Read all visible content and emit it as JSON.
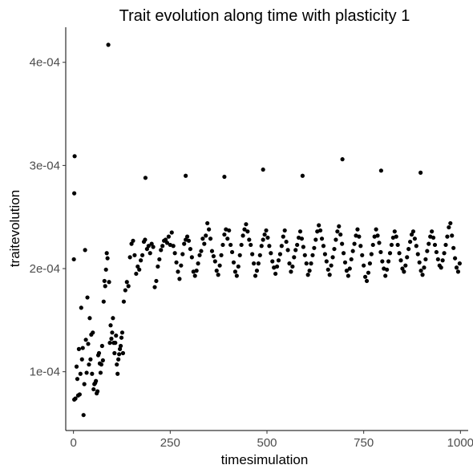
{
  "chart_data": {
    "type": "scatter",
    "title": "Trait evolution along time with plasticity 1",
    "xlabel": "timesimulation",
    "ylabel": "traitevolution",
    "xlim": [
      -20,
      1020
    ],
    "ylim": [
      4.3e-05,
      0.000434
    ],
    "x_ticks": [
      0,
      250,
      500,
      750,
      1000
    ],
    "x_tick_labels": [
      "0",
      "250",
      "500",
      "750",
      "1000"
    ],
    "y_ticks": [
      0.0001,
      0.0002,
      0.0003,
      0.0004
    ],
    "y_tick_labels": [
      "1e-04",
      "2e-04",
      "3e-04",
      "4e-04"
    ],
    "grid": false,
    "point_color": "#000000",
    "outliers": [
      {
        "x": 3,
        "y": 0.000309
      },
      {
        "x": 2,
        "y": 0.000273
      },
      {
        "x": 1,
        "y": 0.000209
      },
      {
        "x": 90,
        "y": 0.000417
      },
      {
        "x": 186,
        "y": 0.000288
      },
      {
        "x": 290,
        "y": 0.00029
      },
      {
        "x": 390,
        "y": 0.000289
      },
      {
        "x": 490,
        "y": 0.000296
      },
      {
        "x": 592,
        "y": 0.00029
      },
      {
        "x": 695,
        "y": 0.000306
      },
      {
        "x": 795,
        "y": 0.000295
      },
      {
        "x": 897,
        "y": 0.000293
      }
    ],
    "points": [
      [
        2,
        7.3e-05
      ],
      [
        5,
        7.4e-05
      ],
      [
        8,
        0.000105
      ],
      [
        10,
        9.3e-05
      ],
      [
        12,
        7.7e-05
      ],
      [
        14,
        0.000122
      ],
      [
        16,
        7.8e-05
      ],
      [
        18,
        9.8e-05
      ],
      [
        20,
        0.000162
      ],
      [
        22,
        0.000112
      ],
      [
        24,
        0.000123
      ],
      [
        26,
        5.8e-05
      ],
      [
        28,
        8.8e-05
      ],
      [
        30,
        0.000218
      ],
      [
        32,
        0.000131
      ],
      [
        34,
        9.9e-05
      ],
      [
        36,
        0.000172
      ],
      [
        38,
        0.000127
      ],
      [
        40,
        0.000107
      ],
      [
        42,
        0.000152
      ],
      [
        44,
        0.000112
      ],
      [
        46,
        0.000136
      ],
      [
        48,
        9.8e-05
      ],
      [
        50,
        0.000138
      ],
      [
        52,
        8.3e-05
      ],
      [
        54,
        8.8e-05
      ],
      [
        56,
        8.9e-05
      ],
      [
        58,
        9.1e-05
      ],
      [
        60,
        7.9e-05
      ],
      [
        62,
        8.1e-05
      ],
      [
        64,
        0.000116
      ],
      [
        66,
        0.000118
      ],
      [
        68,
        0.000108
      ],
      [
        70,
        9.9e-05
      ],
      [
        72,
        0.000107
      ],
      [
        74,
        0.000125
      ],
      [
        76,
        0.000111
      ],
      [
        78,
        0.000168
      ],
      [
        80,
        0.000188
      ],
      [
        82,
        0.000183
      ],
      [
        84,
        0.000199
      ],
      [
        86,
        0.000215
      ],
      [
        88,
        0.00021
      ],
      [
        92,
        0.000187
      ],
      [
        94,
        0.000128
      ],
      [
        96,
        0.000145
      ],
      [
        98,
        0.000132
      ],
      [
        100,
        0.000138
      ],
      [
        102,
        0.000152
      ],
      [
        104,
        0.000128
      ],
      [
        106,
        0.000118
      ],
      [
        108,
        0.000128
      ],
      [
        110,
        0.000135
      ],
      [
        112,
        0.000107
      ],
      [
        114,
        9.8e-05
      ],
      [
        116,
        0.000112
      ],
      [
        118,
        0.000117
      ],
      [
        120,
        0.000122
      ],
      [
        122,
        0.000125
      ],
      [
        124,
        0.000133
      ],
      [
        126,
        0.000138
      ],
      [
        128,
        0.000118
      ],
      [
        130,
        0.000168
      ],
      [
        134,
        0.000179
      ],
      [
        138,
        0.000187
      ],
      [
        142,
        0.000183
      ],
      [
        146,
        0.000211
      ],
      [
        150,
        0.000224
      ],
      [
        154,
        0.000227
      ],
      [
        158,
        0.000213
      ],
      [
        162,
        0.000195
      ],
      [
        166,
        0.000202
      ],
      [
        170,
        0.000199
      ],
      [
        174,
        0.000208
      ],
      [
        178,
        0.000213
      ],
      [
        182,
        0.000226
      ],
      [
        185,
        0.000228
      ],
      [
        190,
        0.000219
      ],
      [
        194,
        0.000222
      ],
      [
        198,
        0.000215
      ],
      [
        202,
        0.000224
      ],
      [
        206,
        0.000221
      ],
      [
        210,
        0.000182
      ],
      [
        214,
        0.000188
      ],
      [
        218,
        0.000202
      ],
      [
        222,
        0.000209
      ],
      [
        226,
        0.000218
      ],
      [
        230,
        0.000222
      ],
      [
        234,
        0.000227
      ],
      [
        238,
        0.000228
      ],
      [
        242,
        0.000225
      ],
      [
        246,
        0.000231
      ],
      [
        250,
        0.000223
      ],
      [
        254,
        0.000235
      ],
      [
        258,
        0.000222
      ],
      [
        262,
        0.000215
      ],
      [
        266,
        0.000206
      ],
      [
        270,
        0.000197
      ],
      [
        274,
        0.00019
      ],
      [
        278,
        0.000203
      ],
      [
        282,
        0.000214
      ],
      [
        286,
        0.000224
      ],
      [
        290,
        0.000228
      ],
      [
        294,
        0.000231
      ],
      [
        298,
        0.000227
      ],
      [
        302,
        0.000219
      ],
      [
        306,
        0.000211
      ],
      [
        310,
        0.000197
      ],
      [
        314,
        0.000193
      ],
      [
        318,
        0.000198
      ],
      [
        322,
        0.000205
      ],
      [
        326,
        0.000213
      ],
      [
        330,
        0.000217
      ],
      [
        334,
        0.000229
      ],
      [
        338,
        0.000224
      ],
      [
        342,
        0.000232
      ],
      [
        346,
        0.000244
      ],
      [
        350,
        0.000238
      ],
      [
        354,
        0.000229
      ],
      [
        358,
        0.000217
      ],
      [
        362,
        0.000212
      ],
      [
        366,
        0.000207
      ],
      [
        370,
        0.000198
      ],
      [
        374,
        0.000194
      ],
      [
        378,
        0.000203
      ],
      [
        382,
        0.000213
      ],
      [
        386,
        0.000223
      ],
      [
        390,
        0.000233
      ],
      [
        394,
        0.000238
      ],
      [
        398,
        0.000229
      ],
      [
        402,
        0.000237
      ],
      [
        406,
        0.000223
      ],
      [
        410,
        0.000216
      ],
      [
        414,
        0.000206
      ],
      [
        418,
        0.000197
      ],
      [
        422,
        0.000193
      ],
      [
        426,
        0.000202
      ],
      [
        430,
        0.000213
      ],
      [
        434,
        0.000223
      ],
      [
        438,
        0.000232
      ],
      [
        442,
        0.000238
      ],
      [
        446,
        0.000243
      ],
      [
        450,
        0.000236
      ],
      [
        454,
        0.000228
      ],
      [
        458,
        0.000223
      ],
      [
        462,
        0.000214
      ],
      [
        466,
        0.000205
      ],
      [
        470,
        0.000193
      ],
      [
        474,
        0.000198
      ],
      [
        478,
        0.000205
      ],
      [
        482,
        0.000213
      ],
      [
        486,
        0.000222
      ],
      [
        490,
        0.000228
      ],
      [
        494,
        0.000233
      ],
      [
        498,
        0.000237
      ],
      [
        502,
        0.00023
      ],
      [
        506,
        0.000222
      ],
      [
        510,
        0.000215
      ],
      [
        514,
        0.000207
      ],
      [
        518,
        0.000201
      ],
      [
        522,
        0.000195
      ],
      [
        526,
        0.000202
      ],
      [
        530,
        0.000208
      ],
      [
        534,
        0.000214
      ],
      [
        538,
        0.000222
      ],
      [
        542,
        0.000231
      ],
      [
        546,
        0.000237
      ],
      [
        550,
        0.000226
      ],
      [
        554,
        0.000218
      ],
      [
        558,
        0.000205
      ],
      [
        562,
        0.000197
      ],
      [
        566,
        0.000202
      ],
      [
        570,
        0.000211
      ],
      [
        574,
        0.000218
      ],
      [
        578,
        0.000223
      ],
      [
        582,
        0.00023
      ],
      [
        586,
        0.000236
      ],
      [
        590,
        0.000229
      ],
      [
        594,
        0.000221
      ],
      [
        598,
        0.000213
      ],
      [
        602,
        0.000205
      ],
      [
        606,
        0.000194
      ],
      [
        610,
        0.000198
      ],
      [
        614,
        0.000205
      ],
      [
        618,
        0.000213
      ],
      [
        622,
        0.00022
      ],
      [
        626,
        0.000228
      ],
      [
        630,
        0.000236
      ],
      [
        634,
        0.000242
      ],
      [
        638,
        0.000237
      ],
      [
        642,
        0.000229
      ],
      [
        646,
        0.000222
      ],
      [
        650,
        0.000214
      ],
      [
        654,
        0.000207
      ],
      [
        658,
        0.000199
      ],
      [
        662,
        0.000194
      ],
      [
        666,
        0.000203
      ],
      [
        670,
        0.000211
      ],
      [
        674,
        0.000219
      ],
      [
        678,
        0.000228
      ],
      [
        682,
        0.000236
      ],
      [
        686,
        0.000241
      ],
      [
        690,
        0.000233
      ],
      [
        694,
        0.000224
      ],
      [
        698,
        0.000215
      ],
      [
        702,
        0.000206
      ],
      [
        706,
        0.000198
      ],
      [
        710,
        0.000193
      ],
      [
        714,
        0.0002
      ],
      [
        718,
        0.000209
      ],
      [
        722,
        0.000217
      ],
      [
        726,
        0.000224
      ],
      [
        730,
        0.000232
      ],
      [
        734,
        0.000238
      ],
      [
        738,
        0.000231
      ],
      [
        742,
        0.000222
      ],
      [
        746,
        0.000213
      ],
      [
        750,
        0.000203
      ],
      [
        754,
        0.000192
      ],
      [
        758,
        0.000188
      ],
      [
        762,
        0.000196
      ],
      [
        766,
        0.000205
      ],
      [
        770,
        0.000214
      ],
      [
        774,
        0.000223
      ],
      [
        778,
        0.000231
      ],
      [
        782,
        0.000238
      ],
      [
        786,
        0.000232
      ],
      [
        790,
        0.000225
      ],
      [
        794,
        0.000216
      ],
      [
        798,
        0.000207
      ],
      [
        802,
        0.0002
      ],
      [
        806,
        0.000193
      ],
      [
        810,
        0.000199
      ],
      [
        814,
        0.000207
      ],
      [
        818,
        0.000215
      ],
      [
        822,
        0.000223
      ],
      [
        826,
        0.00023
      ],
      [
        830,
        0.000236
      ],
      [
        834,
        0.000231
      ],
      [
        838,
        0.000223
      ],
      [
        842,
        0.000215
      ],
      [
        846,
        0.000208
      ],
      [
        850,
        0.0002
      ],
      [
        854,
        0.000197
      ],
      [
        858,
        0.000203
      ],
      [
        862,
        0.000211
      ],
      [
        866,
        0.000219
      ],
      [
        870,
        0.000226
      ],
      [
        874,
        0.000233
      ],
      [
        878,
        0.000236
      ],
      [
        882,
        0.000229
      ],
      [
        886,
        0.000222
      ],
      [
        890,
        0.000214
      ],
      [
        894,
        0.000206
      ],
      [
        898,
        0.000198
      ],
      [
        902,
        0.000194
      ],
      [
        906,
        0.000201
      ],
      [
        910,
        0.000209
      ],
      [
        914,
        0.000217
      ],
      [
        918,
        0.000224
      ],
      [
        922,
        0.000231
      ],
      [
        926,
        0.000236
      ],
      [
        930,
        0.00023
      ],
      [
        934,
        0.000223
      ],
      [
        938,
        0.000216
      ],
      [
        942,
        0.000209
      ],
      [
        946,
        0.000203
      ],
      [
        950,
        0.000201
      ],
      [
        954,
        0.000208
      ],
      [
        958,
        0.000215
      ],
      [
        962,
        0.000223
      ],
      [
        966,
        0.000231
      ],
      [
        970,
        0.00024
      ],
      [
        974,
        0.000244
      ],
      [
        978,
        0.000232
      ],
      [
        982,
        0.00022
      ],
      [
        986,
        0.00021
      ],
      [
        990,
        0.000201
      ],
      [
        994,
        0.000197
      ],
      [
        998,
        0.000205
      ]
    ]
  }
}
